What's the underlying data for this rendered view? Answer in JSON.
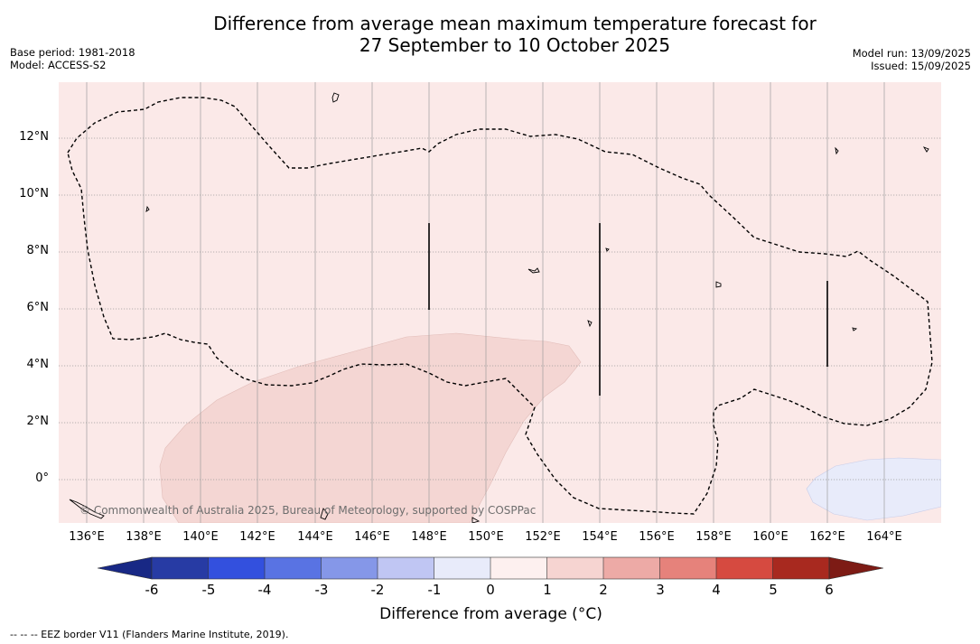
{
  "title_line1": "Difference from average mean maximum temperature forecast for",
  "title_line2": "27 September to 10 October 2025",
  "base_period": "Base period: 1981-2018",
  "model": "Model: ACCESS-S2",
  "model_run": "Model run: 13/09/2025",
  "issued": "Issued: 15/09/2025",
  "lat_labels": [
    "12°N",
    "10°N",
    "8°N",
    "6°N",
    "4°N",
    "2°N",
    "0°"
  ],
  "lon_labels": [
    "136°E",
    "138°E",
    "140°E",
    "142°E",
    "144°E",
    "146°E",
    "148°E",
    "150°E",
    "152°E",
    "154°E",
    "156°E",
    "158°E",
    "160°E",
    "162°E",
    "164°E"
  ],
  "copyright": "© Commonwealth of Australia 2025, Bureau of Meteorology, supported by COSPPac",
  "colorbar": {
    "ticks": [
      "-6",
      "-5",
      "-4",
      "-3",
      "-2",
      "-1",
      "0",
      "1",
      "2",
      "3",
      "4",
      "5",
      "6"
    ],
    "colors": [
      "#273ba4",
      "#3350de",
      "#5973e3",
      "#8597e8",
      "#c0c6f3",
      "#e8ebfa",
      "#fdf0ef",
      "#f6d4d1",
      "#edaaa6",
      "#e6827b",
      "#d64a40",
      "#a8291f"
    ],
    "low_extend_color": "#182885",
    "high_extend_color": "#7d1b15",
    "label": "Difference from average (",
    "label_unit": "°C",
    "label_close": ")"
  },
  "footer": "--  --  -- EEZ border V11 (Flanders Marine Institute, 2019).",
  "colors": {
    "background_anomaly_0_1": "#fbe9e8",
    "anomaly_1_2": "#f4d6d3",
    "anomaly_neg1_0": "#e8ebfa"
  }
}
